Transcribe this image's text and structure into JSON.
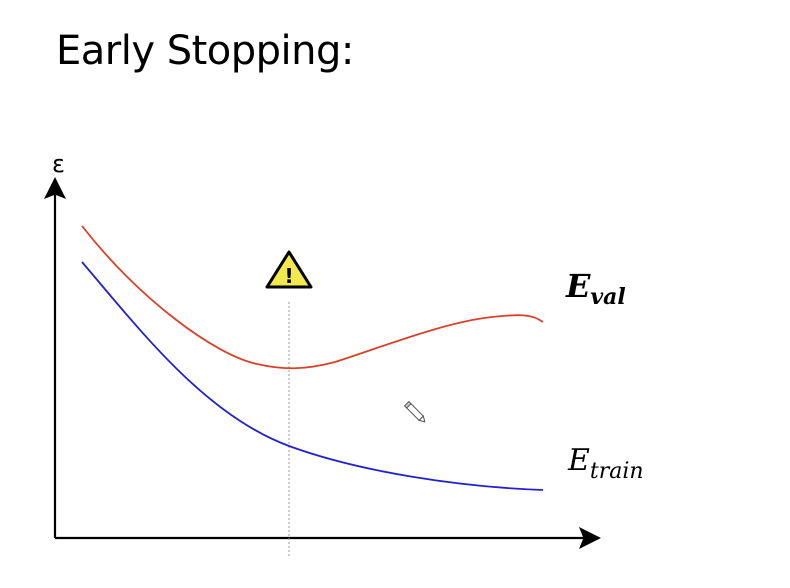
{
  "slide": {
    "title": "Early Stopping:"
  },
  "diagram": {
    "y_axis_label": "ε",
    "curves": {
      "val": {
        "base": "E",
        "subscript": "val",
        "color": "#d9412b",
        "bold": true
      },
      "train": {
        "base": "E",
        "subscript": "train",
        "color": "#2222cc",
        "bold": false
      }
    },
    "stop_marker": {
      "icon": "warning-icon",
      "symbol": "!",
      "fill": "#f2e94e"
    },
    "cursor_icon": "pencil-icon"
  }
}
